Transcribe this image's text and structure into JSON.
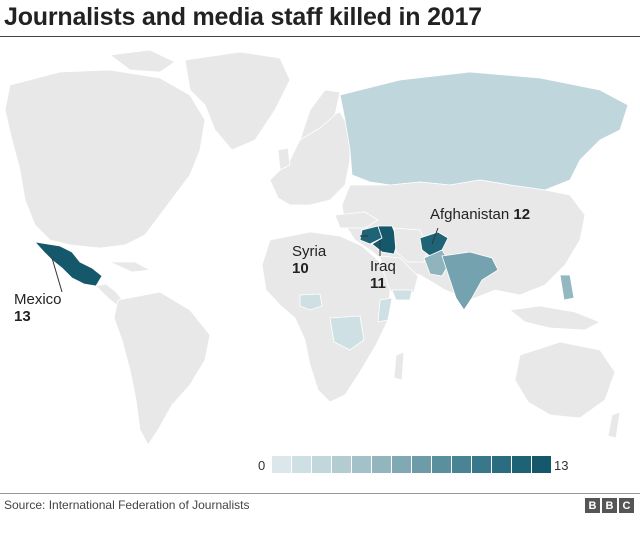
{
  "title": "Journalists and media staff killed in 2017",
  "source": "Source: International Federation of Journalists",
  "brand": [
    "B",
    "B",
    "C"
  ],
  "legend": {
    "min": "0",
    "max": "13",
    "colors": [
      "#dbe7ea",
      "#cfe0e4",
      "#c2d7dc",
      "#b3ccd2",
      "#a3c1c9",
      "#92b5be",
      "#80a9b3",
      "#6d9ca8",
      "#5a909e",
      "#488494",
      "#38788a",
      "#2a6d80",
      "#1e6276",
      "#15586c"
    ]
  },
  "map_colors": {
    "ocean": "#ffffff",
    "land": "#e8e8e8",
    "border": "#ffffff",
    "russia": "#bfd6dc",
    "light": "#cfe0e4",
    "medium": "#93b8c1",
    "india": "#74a2ae",
    "pakistan": "#8fb4bd",
    "dark": "#1f6476",
    "darkest": "#15586c"
  },
  "countries": [
    {
      "name": "Mexico",
      "value": "13"
    },
    {
      "name": "Syria",
      "value": "10"
    },
    {
      "name": "Iraq",
      "value": "11"
    },
    {
      "name": "Afghanistan",
      "value": "12"
    }
  ]
}
